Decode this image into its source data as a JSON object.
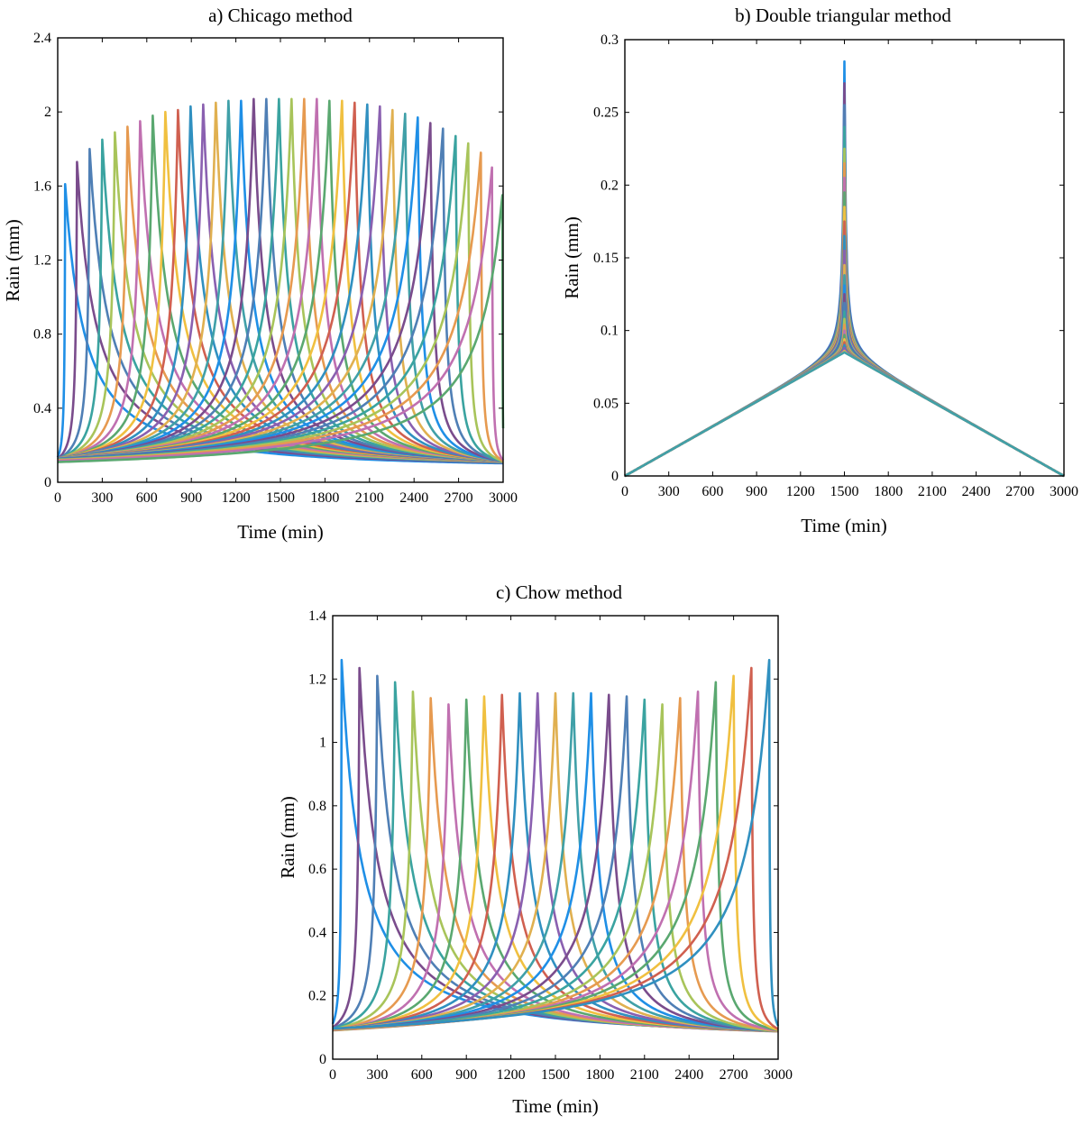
{
  "chart_data": [
    {
      "id": "chicago",
      "type": "line",
      "title": "a) Chicago method",
      "xlabel": "Time (min)",
      "ylabel": "Rain (mm)",
      "xlim": [
        0,
        3000
      ],
      "ylim": [
        0,
        2.4
      ],
      "xticks": [
        "0",
        "300",
        "600",
        "900",
        "1200",
        "1500",
        "1800",
        "2100",
        "2400",
        "2700",
        "3000"
      ],
      "yticks": [
        "0",
        "0.4",
        "0.8",
        "1.2",
        "1.6",
        "2",
        "2.4"
      ],
      "base": 0.045,
      "shape": "peak",
      "peaks": [
        {
          "t": 50,
          "peak": 1.61
        },
        {
          "t": 130,
          "peak": 1.73
        },
        {
          "t": 215,
          "peak": 1.8
        },
        {
          "t": 300,
          "peak": 1.85
        },
        {
          "t": 385,
          "peak": 1.89
        },
        {
          "t": 470,
          "peak": 1.92
        },
        {
          "t": 555,
          "peak": 1.95
        },
        {
          "t": 640,
          "peak": 1.98
        },
        {
          "t": 725,
          "peak": 2.0
        },
        {
          "t": 810,
          "peak": 2.01
        },
        {
          "t": 895,
          "peak": 2.03
        },
        {
          "t": 980,
          "peak": 2.04
        },
        {
          "t": 1065,
          "peak": 2.05
        },
        {
          "t": 1150,
          "peak": 2.06
        },
        {
          "t": 1235,
          "peak": 2.06
        },
        {
          "t": 1320,
          "peak": 2.07
        },
        {
          "t": 1405,
          "peak": 2.07
        },
        {
          "t": 1490,
          "peak": 2.07
        },
        {
          "t": 1575,
          "peak": 2.07
        },
        {
          "t": 1660,
          "peak": 2.07
        },
        {
          "t": 1745,
          "peak": 2.07
        },
        {
          "t": 1830,
          "peak": 2.06
        },
        {
          "t": 1915,
          "peak": 2.06
        },
        {
          "t": 2000,
          "peak": 2.05
        },
        {
          "t": 2085,
          "peak": 2.04
        },
        {
          "t": 2170,
          "peak": 2.03
        },
        {
          "t": 2255,
          "peak": 2.01
        },
        {
          "t": 2340,
          "peak": 1.99
        },
        {
          "t": 2425,
          "peak": 1.97
        },
        {
          "t": 2510,
          "peak": 1.94
        },
        {
          "t": 2595,
          "peak": 1.91
        },
        {
          "t": 2680,
          "peak": 1.87
        },
        {
          "t": 2765,
          "peak": 1.83
        },
        {
          "t": 2850,
          "peak": 1.78
        },
        {
          "t": 2925,
          "peak": 1.7
        },
        {
          "t": 2995,
          "peak": 1.55
        }
      ]
    },
    {
      "id": "double-triangular",
      "type": "line",
      "title": "b) Double triangular method",
      "xlabel": "Time (min)",
      "ylabel": "Rain (mm)",
      "xlim": [
        0,
        3000
      ],
      "ylim": [
        0,
        0.3
      ],
      "xticks": [
        "0",
        "300",
        "600",
        "900",
        "1200",
        "1500",
        "1800",
        "2100",
        "2400",
        "2700",
        "3000"
      ],
      "yticks": [
        "0",
        "0.05",
        "0.1",
        "0.15",
        "0.2",
        "0.25",
        "0.3"
      ],
      "base": 0,
      "shape": "cusp",
      "center": 1500,
      "peaks": [
        {
          "peak": 0.285
        },
        {
          "peak": 0.27
        },
        {
          "peak": 0.255
        },
        {
          "peak": 0.24
        },
        {
          "peak": 0.225
        },
        {
          "peak": 0.215
        },
        {
          "peak": 0.205
        },
        {
          "peak": 0.195
        },
        {
          "peak": 0.185
        },
        {
          "peak": 0.175
        },
        {
          "peak": 0.165
        },
        {
          "peak": 0.155
        },
        {
          "peak": 0.145
        },
        {
          "peak": 0.138
        },
        {
          "peak": 0.131
        },
        {
          "peak": 0.125
        },
        {
          "peak": 0.119
        },
        {
          "peak": 0.113
        },
        {
          "peak": 0.108
        },
        {
          "peak": 0.104
        },
        {
          "peak": 0.1
        },
        {
          "peak": 0.097
        },
        {
          "peak": 0.094
        },
        {
          "peak": 0.092
        },
        {
          "peak": 0.09
        },
        {
          "peak": 0.088
        },
        {
          "peak": 0.086
        },
        {
          "peak": 0.085
        }
      ]
    },
    {
      "id": "chow",
      "type": "line",
      "title": "c) Chow method",
      "xlabel": "Time (min)",
      "ylabel": "Rain (mm)",
      "xlim": [
        0,
        3000
      ],
      "ylim": [
        0,
        1.4
      ],
      "xticks": [
        "0",
        "300",
        "600",
        "900",
        "1200",
        "1500",
        "1800",
        "2100",
        "2400",
        "2700",
        "3000"
      ],
      "yticks": [
        "0",
        "0.2",
        "0.4",
        "0.6",
        "0.8",
        "1",
        "1.2",
        "1.4"
      ],
      "base": 0.045,
      "shape": "peak",
      "peaks": [
        {
          "t": 60,
          "peak": 1.26
        },
        {
          "t": 180,
          "peak": 1.235
        },
        {
          "t": 300,
          "peak": 1.21
        },
        {
          "t": 420,
          "peak": 1.19
        },
        {
          "t": 540,
          "peak": 1.16
        },
        {
          "t": 660,
          "peak": 1.14
        },
        {
          "t": 780,
          "peak": 1.12
        },
        {
          "t": 900,
          "peak": 1.135
        },
        {
          "t": 1020,
          "peak": 1.145
        },
        {
          "t": 1140,
          "peak": 1.15
        },
        {
          "t": 1260,
          "peak": 1.155
        },
        {
          "t": 1380,
          "peak": 1.155
        },
        {
          "t": 1500,
          "peak": 1.155
        },
        {
          "t": 1620,
          "peak": 1.155
        },
        {
          "t": 1740,
          "peak": 1.155
        },
        {
          "t": 1860,
          "peak": 1.15
        },
        {
          "t": 1980,
          "peak": 1.145
        },
        {
          "t": 2100,
          "peak": 1.135
        },
        {
          "t": 2220,
          "peak": 1.12
        },
        {
          "t": 2340,
          "peak": 1.14
        },
        {
          "t": 2460,
          "peak": 1.16
        },
        {
          "t": 2580,
          "peak": 1.19
        },
        {
          "t": 2700,
          "peak": 1.21
        },
        {
          "t": 2820,
          "peak": 1.235
        },
        {
          "t": 2940,
          "peak": 1.26
        }
      ]
    }
  ],
  "palette": [
    "#1f8fe6",
    "#7a4c8c",
    "#4f7fb5",
    "#3aa3a0",
    "#a8c45a",
    "#e69a50",
    "#c070b0",
    "#5aa870",
    "#f0c040",
    "#d06050",
    "#3090c0",
    "#8a60b0",
    "#e0b050",
    "#40a0a8"
  ]
}
